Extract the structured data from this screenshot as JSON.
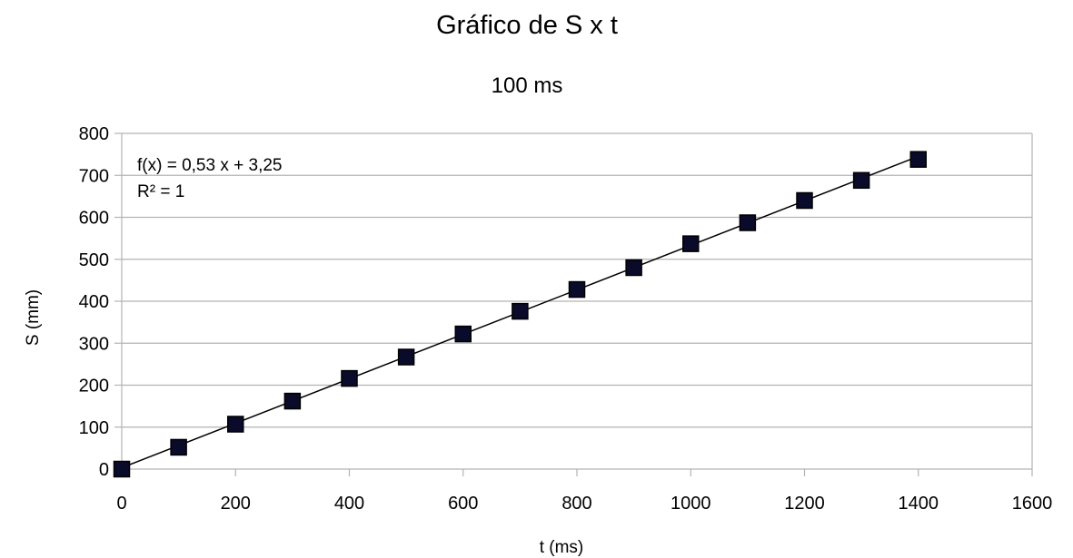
{
  "chart_data": {
    "type": "scatter",
    "title": "Gráfico de S x t",
    "subtitle": "100 ms",
    "xlabel": "t (ms)",
    "ylabel": "S (mm)",
    "xlim": [
      0,
      1600
    ],
    "ylim": [
      0,
      800
    ],
    "x_ticks": [
      "0",
      "200",
      "400",
      "600",
      "800",
      "1000",
      "1200",
      "1400",
      "1600"
    ],
    "y_ticks": [
      "0",
      "100",
      "200",
      "300",
      "400",
      "500",
      "600",
      "700",
      "800"
    ],
    "grid": "horizontal",
    "legend": "none",
    "series": [
      {
        "x": [
          0,
          100,
          200,
          300,
          400,
          500,
          600,
          700,
          800,
          900,
          1000,
          1100,
          1200,
          1300,
          1400
        ],
        "y": [
          0,
          52,
          107,
          162,
          216,
          267,
          322,
          376,
          428,
          480,
          537,
          587,
          640,
          688,
          738
        ],
        "marker": "square",
        "color": "#0a0a2a"
      }
    ],
    "trendline": {
      "equation": "f(x) = 0,53 x + 3,25",
      "r_squared": "R² = 1",
      "slope": 0.53,
      "intercept": 3.25,
      "color": "#000000"
    }
  }
}
